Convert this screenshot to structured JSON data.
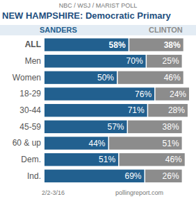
{
  "chart_data": {
    "type": "bar",
    "orientation": "horizontal",
    "stacked": true,
    "data_labels": true,
    "tick_labels": "y",
    "legend": "top",
    "subtitle": "NBC / WSJ / MARIST POLL",
    "title": "NEW HAMPSHIRE: Democratic Primary",
    "annotations": [
      "2/2-3/16",
      "pollingreport.com"
    ],
    "categories": [
      "ALL",
      "Men",
      "Women",
      "18-29",
      "30-44",
      "45-59",
      "60 & up",
      "Dem.",
      "Ind."
    ],
    "xlim": [
      0,
      100
    ],
    "series": [
      {
        "name": "SANDERS",
        "color": "#22608f",
        "values": [
          58,
          70,
          50,
          76,
          71,
          57,
          44,
          51,
          69
        ],
        "value_labels": [
          "58%",
          "70%",
          "50%",
          "76%",
          "71%",
          "57%",
          "44%",
          "51%",
          "69%"
        ]
      },
      {
        "name": "CLINTON",
        "color": "#8c8c8c",
        "values": [
          38,
          25,
          46,
          24,
          28,
          38,
          51,
          46,
          26
        ],
        "value_labels": [
          "38%",
          "25%",
          "46%",
          "24%",
          "28%",
          "38%",
          "51%",
          "46%",
          "26%"
        ]
      }
    ]
  }
}
